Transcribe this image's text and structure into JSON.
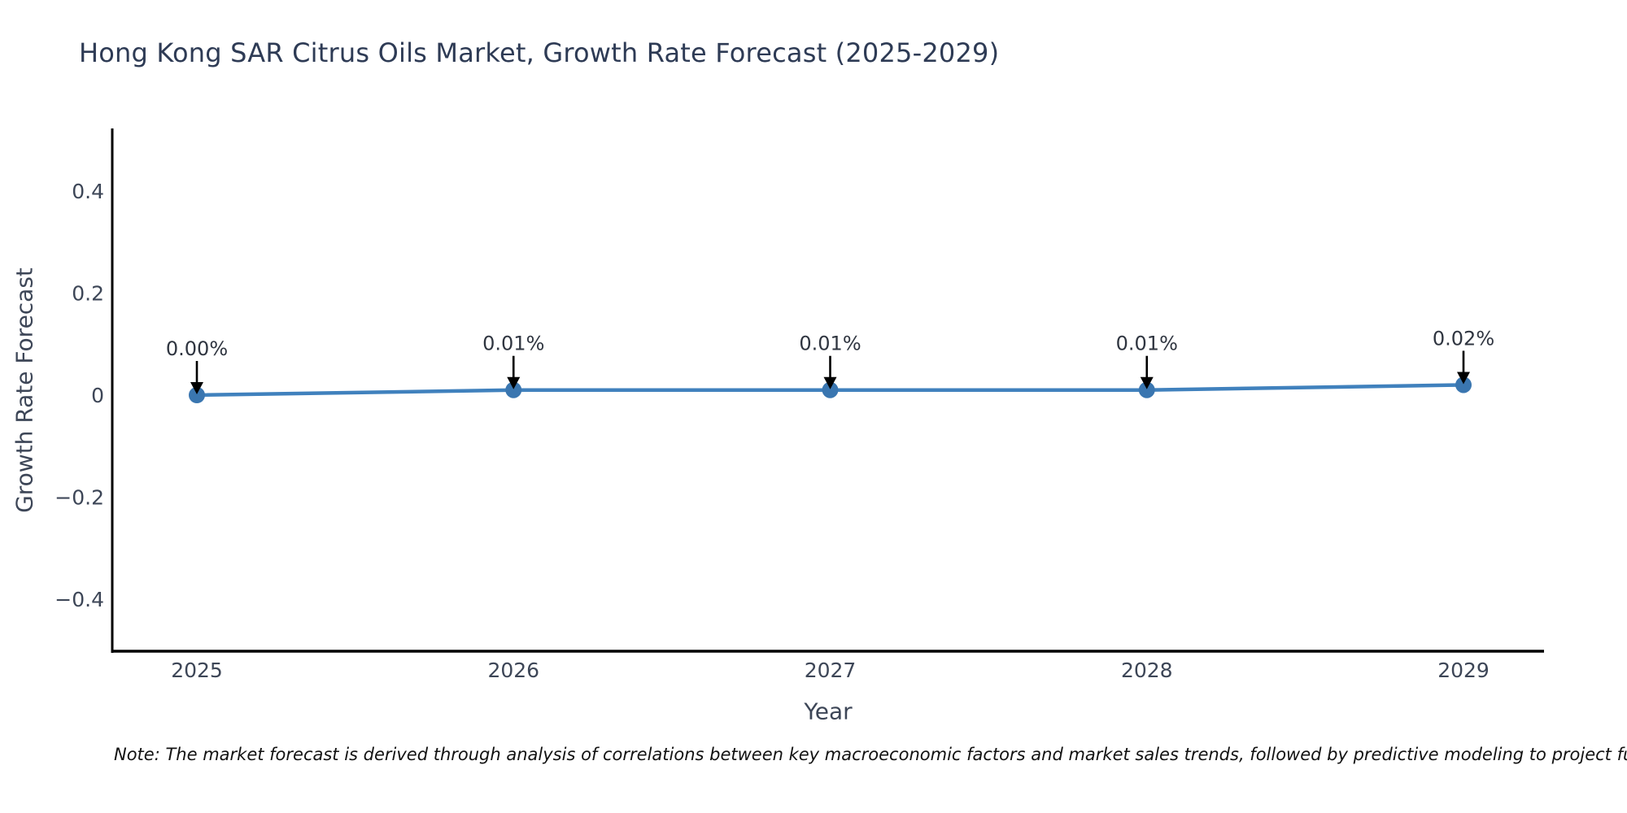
{
  "title": "Hong Kong SAR Citrus Oils Market, Growth Rate Forecast (2025-2029)",
  "note": "Note: The market forecast is derived through analysis of correlations between key macroeconomic factors and market sales trends, followed by predictive modeling to project future sales",
  "chart_data": {
    "type": "line",
    "title": "Hong Kong SAR Citrus Oils Market, Growth Rate Forecast (2025-2029)",
    "xlabel": "Year",
    "ylabel": "Growth Rate Forecast",
    "categories": [
      "2025",
      "2026",
      "2027",
      "2028",
      "2029"
    ],
    "values": [
      0.0,
      0.01,
      0.01,
      0.01,
      0.02
    ],
    "unit": "%",
    "annotations": [
      "0.00%",
      "0.01%",
      "0.01%",
      "0.01%",
      "0.02%"
    ],
    "ylim": [
      -0.5,
      0.52
    ],
    "yticks": {
      "values": [
        0.4,
        0.2,
        0,
        -0.2,
        -0.4
      ],
      "labels": [
        "0.4",
        "0.2",
        "0",
        "−0.2",
        "−0.4"
      ]
    },
    "grid": false,
    "legend_position": "none",
    "colors": {
      "line": "#4081bd",
      "marker": "#3a76b0",
      "arrow": "#000000",
      "axis": "#000000",
      "title": "#2e3b55",
      "tick": "#3d4657",
      "annotation": "#2f3540"
    }
  }
}
